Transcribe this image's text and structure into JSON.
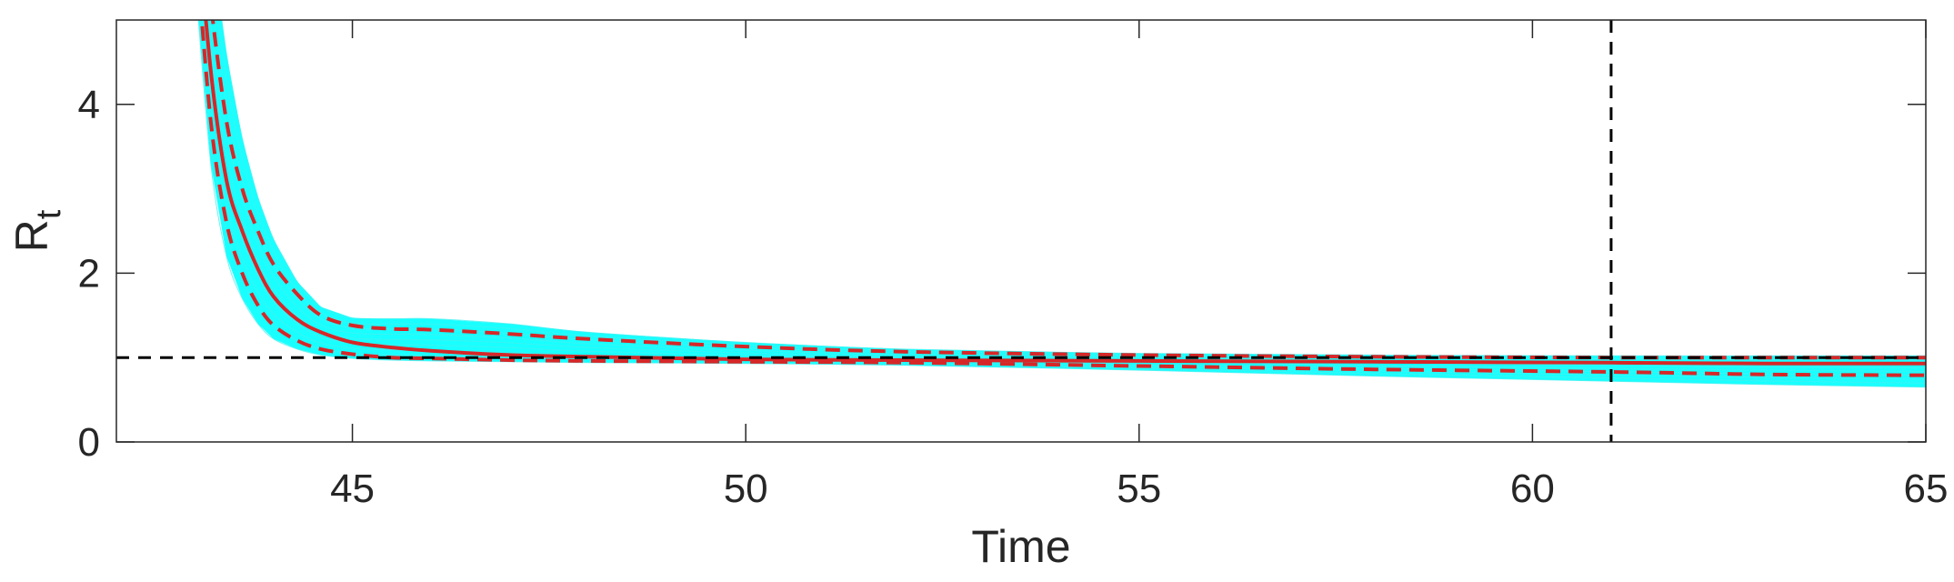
{
  "chart_data": {
    "type": "line",
    "title": "",
    "xlabel": "Time",
    "ylabel": "R",
    "ylabel_subscript": "t",
    "xlim": [
      42,
      65
    ],
    "ylim": [
      0,
      5
    ],
    "xticks": [
      45,
      50,
      55,
      60,
      65
    ],
    "yticks": [
      0,
      2,
      4
    ],
    "grid": false,
    "box": true,
    "reference_lines": {
      "horizontal_y": 1,
      "vertical_x": 61
    },
    "colors": {
      "ensemble": "#00ffff",
      "median": "#d62728",
      "bounds": "#d62728",
      "reference": "#000000",
      "axes": "#262626"
    },
    "median": {
      "x": [
        43.0,
        43.2,
        43.4,
        43.6,
        43.8,
        44.0,
        44.3,
        44.6,
        45.0,
        45.5,
        46,
        47,
        48,
        50,
        52,
        55,
        58,
        61,
        63,
        65
      ],
      "y": [
        6.5,
        4.4,
        3.1,
        2.5,
        2.05,
        1.72,
        1.45,
        1.3,
        1.18,
        1.12,
        1.08,
        1.03,
        1.01,
        0.98,
        0.97,
        0.96,
        0.95,
        0.94,
        0.93,
        0.93
      ]
    },
    "upper_bound": {
      "x": [
        43.0,
        43.2,
        43.4,
        43.6,
        43.8,
        44.0,
        44.3,
        44.6,
        45.0,
        45.5,
        46,
        47,
        48,
        50,
        52,
        55,
        58,
        61,
        63,
        65
      ],
      "y": [
        7.0,
        5.2,
        3.8,
        3.0,
        2.5,
        2.1,
        1.75,
        1.5,
        1.38,
        1.34,
        1.33,
        1.28,
        1.22,
        1.13,
        1.07,
        1.03,
        1.01,
        1.0,
        1.0,
        1.0
      ]
    },
    "lower_bound": {
      "x": [
        43.0,
        43.2,
        43.4,
        43.6,
        43.8,
        44.0,
        44.3,
        44.6,
        45.0,
        45.5,
        46,
        47,
        48,
        50,
        52,
        55,
        58,
        61,
        63,
        65
      ],
      "y": [
        6.0,
        3.8,
        2.6,
        2.0,
        1.62,
        1.38,
        1.2,
        1.1,
        1.04,
        1.0,
        0.99,
        0.97,
        0.96,
        0.95,
        0.94,
        0.9,
        0.86,
        0.83,
        0.8,
        0.79
      ]
    },
    "ensemble_upper": {
      "x": [
        43.0,
        43.2,
        43.4,
        43.6,
        43.8,
        44.0,
        44.3,
        44.6,
        45.0,
        45.5,
        46,
        47,
        48,
        50,
        52,
        55,
        58,
        61,
        63,
        65
      ],
      "y": [
        7.5,
        6.0,
        4.6,
        3.6,
        2.9,
        2.4,
        1.9,
        1.6,
        1.47,
        1.46,
        1.46,
        1.4,
        1.3,
        1.18,
        1.1,
        1.05,
        1.03,
        1.02,
        1.02,
        1.02
      ]
    },
    "ensemble_lower": {
      "x": [
        43.0,
        43.2,
        43.4,
        43.6,
        43.8,
        44.0,
        44.3,
        44.6,
        45.0,
        45.5,
        46,
        47,
        48,
        50,
        52,
        55,
        58,
        61,
        63,
        65
      ],
      "y": [
        5.5,
        3.3,
        2.2,
        1.7,
        1.4,
        1.22,
        1.1,
        1.03,
        0.99,
        0.97,
        0.96,
        0.95,
        0.94,
        0.93,
        0.91,
        0.85,
        0.78,
        0.72,
        0.68,
        0.65
      ]
    }
  }
}
